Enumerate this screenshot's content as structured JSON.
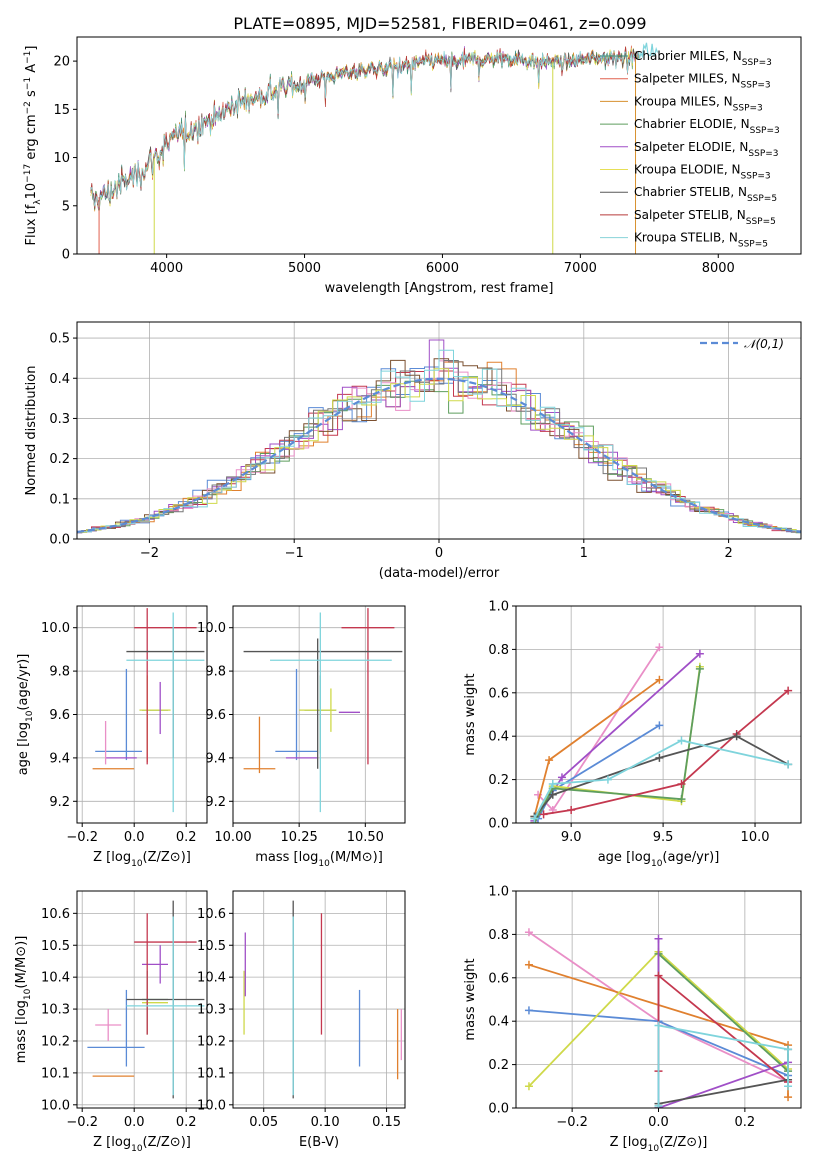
{
  "figure": {
    "title": "PLATE=0895, MJD=52581, FIBERID=0461, z=0.099"
  },
  "chart_data": [
    {
      "id": "spectrum",
      "type": "line",
      "xlabel": "wavelength [Angstrom, rest frame]",
      "ylabel": "Flux [f_λ 10^-17 erg cm^-2 s^-1 A^-1]",
      "xlim": [
        3350,
        8600
      ],
      "ylim": [
        0,
        22.5
      ],
      "xticks": [
        4000,
        5000,
        6000,
        7000,
        8000
      ],
      "yticks": [
        0,
        5,
        10,
        15,
        20
      ],
      "grid": false,
      "legend_position": "top-right",
      "continuum_x": [
        3450,
        3600,
        3800,
        3950,
        4100,
        4300,
        4500,
        4700,
        4900,
        5100,
        5300,
        5500,
        5700,
        5900,
        6100,
        6300,
        6500,
        6700,
        6900,
        7100,
        7300,
        7420
      ],
      "continuum_y": [
        5.5,
        6.5,
        8.5,
        10.5,
        12.5,
        13.8,
        15.5,
        16.5,
        17.5,
        18.2,
        18.8,
        19.2,
        19.5,
        20.0,
        20.0,
        20.2,
        20.3,
        20.0,
        20.0,
        20.3,
        20.5,
        20.5
      ],
      "series": [
        {
          "name": "Chabrier MILES, N_SSP=3",
          "color": "#3d8f7c"
        },
        {
          "name": "Salpeter MILES, N_SSP=3",
          "color": "#e0604e"
        },
        {
          "name": "Kroupa MILES, N_SSP=3",
          "color": "#d7902f"
        },
        {
          "name": "Chabrier ELODIE, N_SSP=3",
          "color": "#5e9e5e"
        },
        {
          "name": "Salpeter ELODIE, N_SSP=3",
          "color": "#a04fc7"
        },
        {
          "name": "Kroupa ELODIE, N_SSP=3",
          "color": "#e6df56"
        },
        {
          "name": "Chabrier STELIB, N_SSP=5",
          "color": "#585858"
        },
        {
          "name": "Salpeter STELIB, N_SSP=5",
          "color": "#b73a3a"
        },
        {
          "name": "Kroupa STELIB, N_SSP=5",
          "color": "#87d3d8"
        }
      ]
    },
    {
      "id": "residuals",
      "type": "line",
      "xlabel": "(data-model)/error",
      "ylabel": "Normed distribution",
      "xlim": [
        -2.5,
        2.5
      ],
      "ylim": [
        0,
        0.54
      ],
      "xticks": [
        -2,
        -1,
        0,
        1,
        2
      ],
      "yticks": [
        0.0,
        0.1,
        0.2,
        0.3,
        0.4,
        0.5
      ],
      "grid": true,
      "legend_position": "top-right",
      "reference": {
        "name": "𝒩(0,1)",
        "color": "#5b8bd6",
        "style": "dashed"
      },
      "hist_colors": [
        "#5b8bd6",
        "#e0802f",
        "#5e9e5e",
        "#c4384f",
        "#a04fc7",
        "#7b5030",
        "#e98fc7",
        "#777777",
        "#cfd94a",
        "#7fd4dc"
      ]
    },
    {
      "id": "age-Z",
      "type": "scatter",
      "xlabel": "Z [log10(Z/Z⊙)]",
      "ylabel": "age [log10(age/yr)]",
      "xlim": [
        -0.22,
        0.28
      ],
      "ylim": [
        9.1,
        10.1
      ],
      "xticks": [
        -0.2,
        0.0,
        0.2
      ],
      "yticks": [
        9.2,
        9.4,
        9.6,
        9.8,
        10.0
      ],
      "grid": true,
      "points": [
        {
          "x": -0.06,
          "xerr": 0.09,
          "y": 9.43,
          "yerr": 0.0,
          "color": "#5b8bd6"
        },
        {
          "x": -0.03,
          "xerr": 0.0,
          "y": 9.6,
          "yerr": 0.21,
          "color": "#5b8bd6"
        },
        {
          "x": -0.08,
          "xerr": 0.08,
          "y": 9.35,
          "yerr": 0.0,
          "color": "#e0802f"
        },
        {
          "x": 0.05,
          "xerr": 0.0,
          "y": 9.58,
          "yerr": 0.2,
          "color": "#e0802f"
        },
        {
          "x": -0.05,
          "xerr": 0.06,
          "y": 9.4,
          "yerr": 0.0,
          "color": "#a04fc7"
        },
        {
          "x": -0.11,
          "xerr": 0.0,
          "y": 9.47,
          "yerr": 0.1,
          "color": "#e98fc7"
        },
        {
          "x": 0.08,
          "xerr": 0.05,
          "y": 9.62,
          "yerr": 0.0,
          "color": "#5e9e5e"
        },
        {
          "x": 0.08,
          "xerr": 0.06,
          "y": 9.62,
          "yerr": 0.0,
          "color": "#cfd94a"
        },
        {
          "x": 0.1,
          "xerr": 0.0,
          "y": 9.63,
          "yerr": 0.12,
          "color": "#a04fc7"
        },
        {
          "x": 0.05,
          "xerr": 0.0,
          "y": 9.6,
          "yerr": 0.18,
          "color": "#cfd94a"
        },
        {
          "x": 0.12,
          "xerr": 0.12,
          "y": 10.0,
          "yerr": 0.0,
          "color": "#c4384f"
        },
        {
          "x": 0.05,
          "xerr": 0.0,
          "y": 9.73,
          "yerr": 0.36,
          "color": "#c4384f"
        },
        {
          "x": 0.12,
          "xerr": 0.15,
          "y": 9.89,
          "yerr": 0.0,
          "color": "#555555"
        },
        {
          "x": 0.15,
          "xerr": 0.0,
          "y": 9.7,
          "yerr": 0.3,
          "color": "#555555"
        },
        {
          "x": 0.12,
          "xerr": 0.15,
          "y": 9.85,
          "yerr": 0.0,
          "color": "#7fd4dc"
        },
        {
          "x": 0.15,
          "xerr": 0.0,
          "y": 9.61,
          "yerr": 0.46,
          "color": "#7fd4dc"
        }
      ]
    },
    {
      "id": "age-mass",
      "type": "scatter",
      "xlabel": "mass [log10(M/M⊙)]",
      "ylabel": "",
      "xlim": [
        10.0,
        10.65
      ],
      "ylim": [
        9.1,
        10.1
      ],
      "xticks": [
        10.0,
        10.25,
        10.5
      ],
      "yticks": [
        9.2,
        9.4,
        9.6,
        9.8,
        10.0
      ],
      "grid": true,
      "points": [
        {
          "x": 10.24,
          "xerr": 0.08,
          "y": 9.43,
          "yerr": 0.0,
          "color": "#5b8bd6"
        },
        {
          "x": 10.24,
          "xerr": 0.0,
          "y": 9.6,
          "yerr": 0.21,
          "color": "#5b8bd6"
        },
        {
          "x": 10.1,
          "xerr": 0.06,
          "y": 9.35,
          "yerr": 0.0,
          "color": "#e0802f"
        },
        {
          "x": 10.1,
          "xerr": 0.0,
          "y": 9.46,
          "yerr": 0.13,
          "color": "#e0802f"
        },
        {
          "x": 10.26,
          "xerr": 0.06,
          "y": 9.4,
          "yerr": 0.0,
          "color": "#a04fc7"
        },
        {
          "x": 10.44,
          "xerr": 0.04,
          "y": 9.61,
          "yerr": 0.0,
          "color": "#a04fc7"
        },
        {
          "x": 10.33,
          "xerr": 0.06,
          "y": 9.62,
          "yerr": 0.0,
          "color": "#5e9e5e"
        },
        {
          "x": 10.33,
          "xerr": 0.0,
          "y": 9.6,
          "yerr": 0.18,
          "color": "#5e9e5e"
        },
        {
          "x": 10.32,
          "xerr": 0.07,
          "y": 9.62,
          "yerr": 0.0,
          "color": "#cfd94a"
        },
        {
          "x": 10.37,
          "xerr": 0.0,
          "y": 9.62,
          "yerr": 0.1,
          "color": "#cfd94a"
        },
        {
          "x": 10.51,
          "xerr": 0.1,
          "y": 10.0,
          "yerr": 0.0,
          "color": "#c4384f"
        },
        {
          "x": 10.51,
          "xerr": 0.0,
          "y": 9.73,
          "yerr": 0.36,
          "color": "#c4384f"
        },
        {
          "x": 10.34,
          "xerr": 0.3,
          "y": 9.89,
          "yerr": 0.0,
          "color": "#555555"
        },
        {
          "x": 10.32,
          "xerr": 0.0,
          "y": 9.65,
          "yerr": 0.3,
          "color": "#555555"
        },
        {
          "x": 10.37,
          "xerr": 0.23,
          "y": 9.85,
          "yerr": 0.0,
          "color": "#7fd4dc"
        },
        {
          "x": 10.33,
          "xerr": 0.0,
          "y": 9.61,
          "yerr": 0.46,
          "color": "#7fd4dc"
        }
      ]
    },
    {
      "id": "mass-weight-age",
      "type": "line",
      "xlabel": "age [log10(age/yr)]",
      "ylabel": "mass weight",
      "xlim": [
        8.7,
        10.25
      ],
      "ylim": [
        0,
        1.0
      ],
      "xticks": [
        9.0,
        9.5,
        10.0
      ],
      "yticks": [
        0.0,
        0.2,
        0.4,
        0.6,
        0.8,
        1.0
      ],
      "grid": true,
      "series": [
        {
          "color": "#e98fc7",
          "x": [
            8.82,
            8.9,
            9.48
          ],
          "y": [
            0.13,
            0.06,
            0.81
          ]
        },
        {
          "color": "#e0802f",
          "x": [
            8.8,
            8.88,
            9.48
          ],
          "y": [
            0.03,
            0.29,
            0.66
          ]
        },
        {
          "color": "#a04fc7",
          "x": [
            8.8,
            8.95,
            9.7
          ],
          "y": [
            0.01,
            0.21,
            0.78
          ]
        },
        {
          "color": "#5b8bd6",
          "x": [
            8.82,
            8.9,
            9.48
          ],
          "y": [
            0.02,
            0.15,
            0.45
          ]
        },
        {
          "color": "#cfd94a",
          "x": [
            8.8,
            8.9,
            9.6,
            9.7
          ],
          "y": [
            0.0,
            0.17,
            0.1,
            0.72
          ]
        },
        {
          "color": "#5e9e5e",
          "x": [
            8.8,
            8.9,
            9.6,
            9.7
          ],
          "y": [
            0.0,
            0.16,
            0.11,
            0.71
          ]
        },
        {
          "color": "#c4384f",
          "x": [
            8.85,
            9.0,
            9.6,
            9.9,
            10.18
          ],
          "y": [
            0.04,
            0.06,
            0.18,
            0.41,
            0.61
          ]
        },
        {
          "color": "#555555",
          "x": [
            8.8,
            8.9,
            9.48,
            9.9,
            10.18
          ],
          "y": [
            0.03,
            0.13,
            0.3,
            0.4,
            0.27
          ]
        },
        {
          "color": "#7fd4dc",
          "x": [
            8.8,
            8.9,
            9.2,
            9.6,
            10.18
          ],
          "y": [
            0.02,
            0.18,
            0.2,
            0.38,
            0.27
          ]
        }
      ]
    },
    {
      "id": "mass-Z",
      "type": "scatter",
      "xlabel": "Z [log10(Z/Z⊙)]",
      "ylabel": "mass [log10(M/M⊙)]",
      "xlim": [
        -0.22,
        0.28
      ],
      "ylim": [
        9.99,
        10.67
      ],
      "xticks": [
        -0.2,
        0.0,
        0.2
      ],
      "yticks": [
        10.0,
        10.1,
        10.2,
        10.3,
        10.4,
        10.5,
        10.6
      ],
      "grid": true,
      "points": [
        {
          "x": -0.07,
          "xerr": 0.11,
          "y": 10.18,
          "yerr": 0.0,
          "color": "#5b8bd6"
        },
        {
          "x": -0.03,
          "xerr": 0.0,
          "y": 10.24,
          "yerr": 0.12,
          "color": "#5b8bd6"
        },
        {
          "x": -0.08,
          "xerr": 0.08,
          "y": 10.09,
          "yerr": 0.0,
          "color": "#e0802f"
        },
        {
          "x": -0.1,
          "xerr": 0.05,
          "y": 10.25,
          "yerr": 0.0,
          "color": "#e98fc7"
        },
        {
          "x": -0.1,
          "xerr": 0.0,
          "y": 10.25,
          "yerr": 0.05,
          "color": "#e98fc7"
        },
        {
          "x": 0.08,
          "xerr": 0.05,
          "y": 10.44,
          "yerr": 0.0,
          "color": "#a04fc7"
        },
        {
          "x": 0.1,
          "xerr": 0.0,
          "y": 10.44,
          "yerr": 0.06,
          "color": "#a04fc7"
        },
        {
          "x": 0.08,
          "xerr": 0.05,
          "y": 10.33,
          "yerr": 0.0,
          "color": "#5e9e5e"
        },
        {
          "x": 0.05,
          "xerr": 0.0,
          "y": 10.32,
          "yerr": 0.1,
          "color": "#5e9e5e"
        },
        {
          "x": 0.08,
          "xerr": 0.05,
          "y": 10.32,
          "yerr": 0.0,
          "color": "#cfd94a"
        },
        {
          "x": 0.12,
          "xerr": 0.12,
          "y": 10.51,
          "yerr": 0.0,
          "color": "#c4384f"
        },
        {
          "x": 0.05,
          "xerr": 0.0,
          "y": 10.41,
          "yerr": 0.19,
          "color": "#c4384f"
        },
        {
          "x": 0.12,
          "xerr": 0.15,
          "y": 10.33,
          "yerr": 0.0,
          "color": "#555555"
        },
        {
          "x": 0.15,
          "xerr": 0.0,
          "y": 10.33,
          "yerr": 0.31,
          "color": "#555555"
        },
        {
          "x": 0.12,
          "xerr": 0.15,
          "y": 10.31,
          "yerr": 0.0,
          "color": "#7fd4dc"
        },
        {
          "x": 0.15,
          "xerr": 0.0,
          "y": 10.31,
          "yerr": 0.28,
          "color": "#7fd4dc"
        }
      ]
    },
    {
      "id": "mass-EBV",
      "type": "scatter",
      "xlabel": "E(B-V)",
      "ylabel": "",
      "xlim": [
        0.025,
        0.165
      ],
      "ylim": [
        9.99,
        10.67
      ],
      "xticks": [
        0.05,
        0.1,
        0.15
      ],
      "yticks": [
        10.0,
        10.1,
        10.2,
        10.3,
        10.4,
        10.5,
        10.6
      ],
      "grid": true,
      "points": [
        {
          "x": 0.034,
          "xerr": 0.0,
          "y": 10.32,
          "yerr": 0.1,
          "color": "#cfd94a"
        },
        {
          "x": 0.035,
          "xerr": 0.0,
          "y": 10.44,
          "yerr": 0.1,
          "color": "#a04fc7"
        },
        {
          "x": 0.074,
          "xerr": 0.0,
          "y": 10.33,
          "yerr": 0.31,
          "color": "#555555"
        },
        {
          "x": 0.074,
          "xerr": 0.0,
          "y": 10.31,
          "yerr": 0.28,
          "color": "#7fd4dc"
        },
        {
          "x": 0.097,
          "xerr": 0.0,
          "y": 10.41,
          "yerr": 0.19,
          "color": "#c4384f"
        },
        {
          "x": 0.128,
          "xerr": 0.0,
          "y": 10.24,
          "yerr": 0.12,
          "color": "#5b8bd6"
        },
        {
          "x": 0.159,
          "xerr": 0.0,
          "y": 10.19,
          "yerr": 0.11,
          "color": "#e0802f"
        },
        {
          "x": 0.162,
          "xerr": 0.0,
          "y": 10.22,
          "yerr": 0.08,
          "color": "#e98fc7"
        }
      ]
    },
    {
      "id": "mass-weight-Z",
      "type": "line",
      "xlabel": "Z [log10(Z/Z⊙)]",
      "ylabel": "mass weight",
      "xlim": [
        -0.33,
        0.33
      ],
      "ylim": [
        0,
        1.0
      ],
      "xticks": [
        -0.2,
        0.0,
        0.2
      ],
      "yticks": [
        0.0,
        0.2,
        0.4,
        0.6,
        0.8,
        1.0
      ],
      "grid": true,
      "series": [
        {
          "color": "#e98fc7",
          "x": [
            -0.3,
            0.0,
            0.3
          ],
          "y": [
            0.81,
            0.4,
            0.12
          ]
        },
        {
          "color": "#e0802f",
          "x": [
            -0.3,
            0.3,
            0.3
          ],
          "y": [
            0.66,
            0.29,
            0.05
          ]
        },
        {
          "color": "#5b8bd6",
          "x": [
            -0.3,
            0.0,
            0.3
          ],
          "y": [
            0.45,
            0.4,
            0.15
          ]
        },
        {
          "color": "#cfd94a",
          "x": [
            -0.3,
            0.0,
            0.3
          ],
          "y": [
            0.1,
            0.72,
            0.18
          ]
        },
        {
          "color": "#5e9e5e",
          "x": [
            0.0,
            0.0,
            0.3
          ],
          "y": [
            0.0,
            0.71,
            0.17
          ]
        },
        {
          "color": "#a04fc7",
          "x": [
            0.0,
            0.0,
            0.3
          ],
          "y": [
            0.78,
            0.0,
            0.21
          ]
        },
        {
          "color": "#c4384f",
          "x": [
            0.0,
            0.0,
            0.3
          ],
          "y": [
            0.17,
            0.61,
            0.12
          ]
        },
        {
          "color": "#555555",
          "x": [
            0.0,
            0.3,
            0.3
          ],
          "y": [
            0.02,
            0.13,
            0.27
          ]
        },
        {
          "color": "#7fd4dc",
          "x": [
            0.0,
            0.0,
            0.3,
            0.3
          ],
          "y": [
            0.01,
            0.38,
            0.27,
            0.1
          ]
        }
      ]
    }
  ]
}
